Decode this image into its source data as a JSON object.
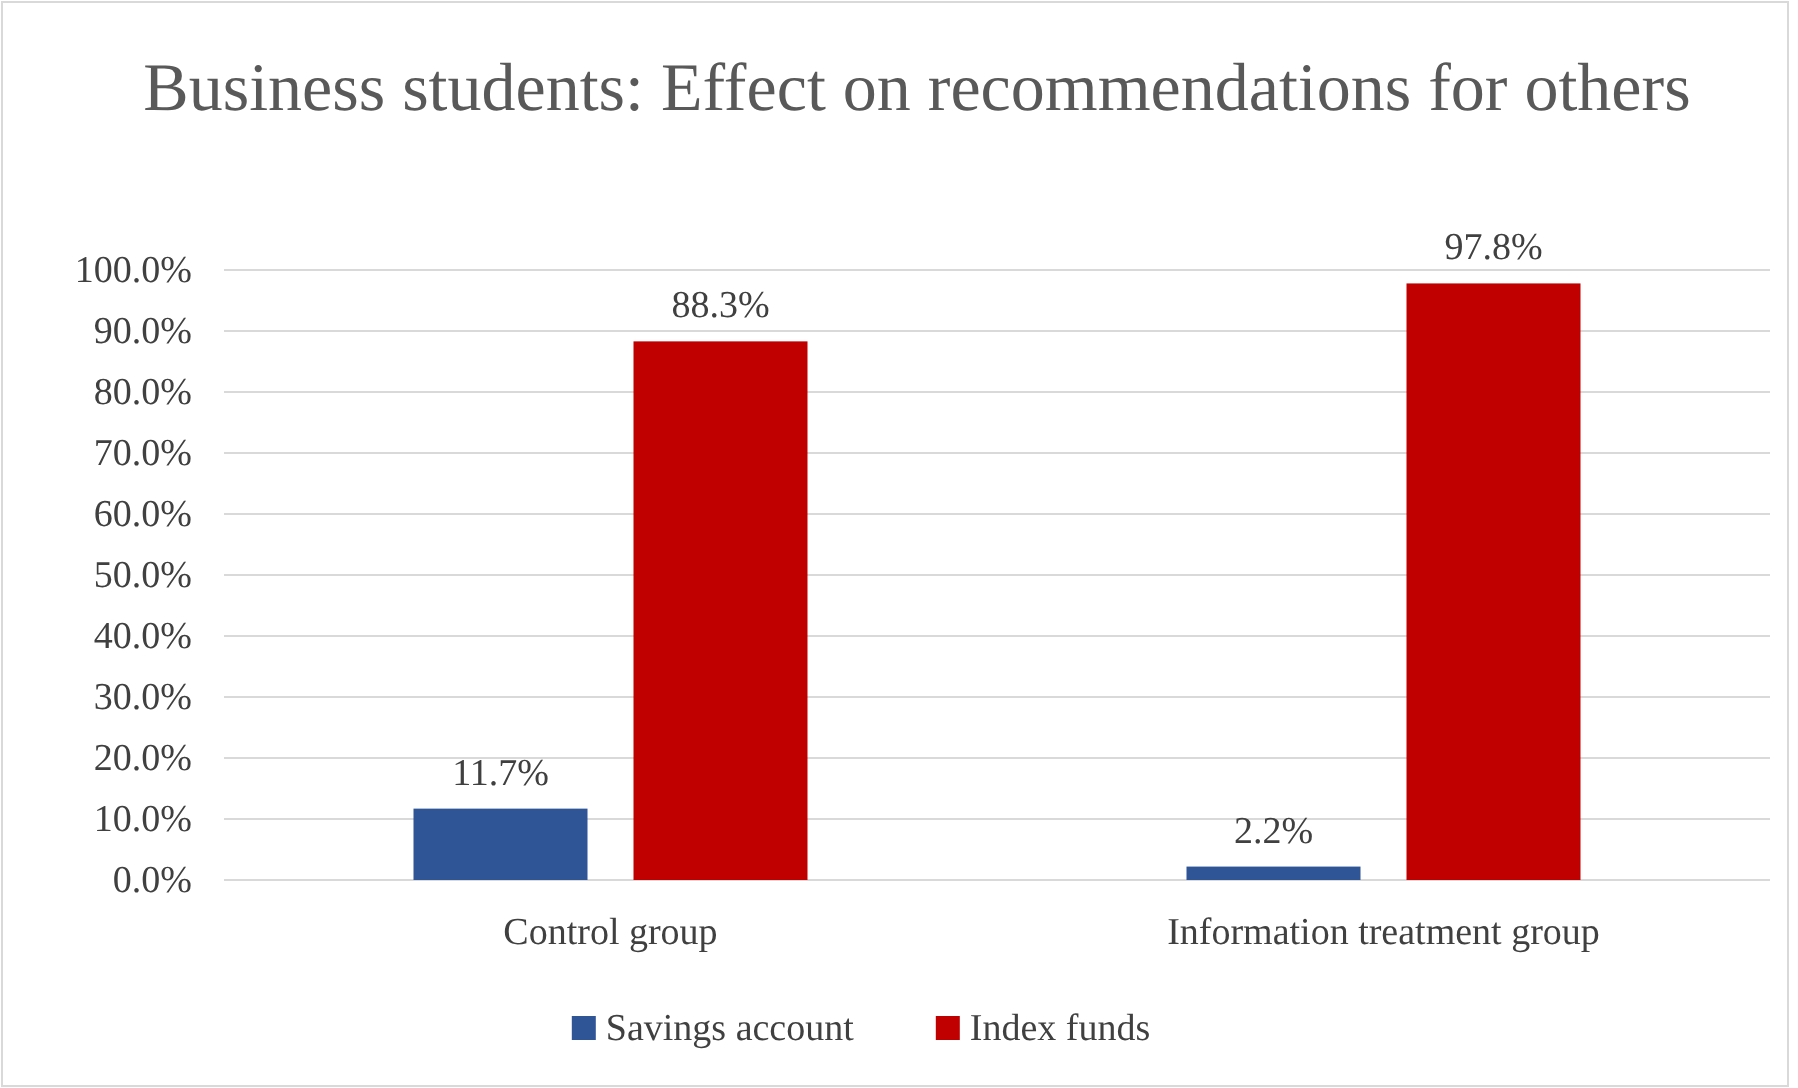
{
  "chart_data": {
    "type": "bar",
    "title": "Business students: Effect on recommendations for others",
    "categories": [
      "Control group",
      "Information treatment group"
    ],
    "series": [
      {
        "name": "Savings account",
        "color": "#2f5597",
        "values": [
          11.7,
          2.2
        ]
      },
      {
        "name": "Index funds",
        "color": "#c00000",
        "values": [
          88.3,
          97.8
        ]
      }
    ],
    "ylim": [
      0,
      100
    ],
    "yticks": [
      {
        "value": 0,
        "label": "0.0%"
      },
      {
        "value": 10,
        "label": "10.0%"
      },
      {
        "value": 20,
        "label": "20.0%"
      },
      {
        "value": 30,
        "label": "30.0%"
      },
      {
        "value": 40,
        "label": "40.0%"
      },
      {
        "value": 50,
        "label": "50.0%"
      },
      {
        "value": 60,
        "label": "60.0%"
      },
      {
        "value": 70,
        "label": "70.0%"
      },
      {
        "value": 80,
        "label": "80.0%"
      },
      {
        "value": 90,
        "label": "90.0%"
      },
      {
        "value": 100,
        "label": "100.0%"
      }
    ],
    "value_labels": [
      [
        "11.7%",
        "2.2%"
      ],
      [
        "88.3%",
        "97.8%"
      ]
    ],
    "grid": "y",
    "legend": "bottom"
  }
}
